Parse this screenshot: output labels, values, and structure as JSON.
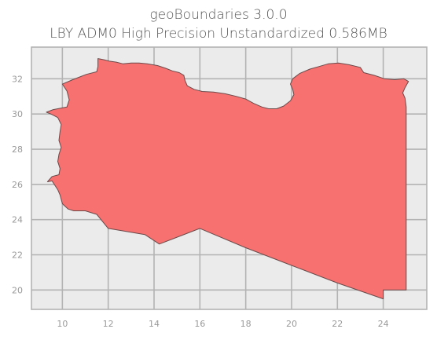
{
  "title_line1": "geoBoundaries 3.0.0",
  "title_line2": "LBY ADM0 High Precision Unstandardized 0.586MB",
  "map": {
    "country": "LBY",
    "fill_color": "#F87171",
    "edge_color": "#6b4a4a",
    "background_color": "#EBEBEB",
    "grid_color": "#B3B3B3",
    "x_ticks": [
      10,
      12,
      14,
      16,
      18,
      20,
      22,
      24
    ],
    "y_ticks": [
      20,
      22,
      24,
      26,
      28,
      30,
      32
    ],
    "xlim": [
      8.65,
      25.9
    ],
    "ylim": [
      18.9,
      33.8
    ],
    "boundary": [
      [
        11.55,
        33.15
      ],
      [
        11.82,
        33.08
      ],
      [
        12.05,
        33.0
      ],
      [
        12.35,
        32.95
      ],
      [
        12.65,
        32.85
      ],
      [
        13.0,
        32.9
      ],
      [
        13.35,
        32.9
      ],
      [
        13.7,
        32.85
      ],
      [
        14.15,
        32.75
      ],
      [
        14.5,
        32.6
      ],
      [
        14.8,
        32.45
      ],
      [
        15.1,
        32.35
      ],
      [
        15.3,
        32.2
      ],
      [
        15.35,
        31.9
      ],
      [
        15.45,
        31.6
      ],
      [
        15.75,
        31.4
      ],
      [
        16.1,
        31.28
      ],
      [
        16.6,
        31.25
      ],
      [
        17.1,
        31.15
      ],
      [
        17.6,
        31.0
      ],
      [
        18.0,
        30.85
      ],
      [
        18.35,
        30.6
      ],
      [
        18.7,
        30.4
      ],
      [
        19.0,
        30.3
      ],
      [
        19.35,
        30.3
      ],
      [
        19.65,
        30.45
      ],
      [
        19.95,
        30.75
      ],
      [
        20.1,
        31.1
      ],
      [
        20.05,
        31.4
      ],
      [
        19.95,
        31.7
      ],
      [
        20.05,
        32.0
      ],
      [
        20.35,
        32.3
      ],
      [
        20.8,
        32.55
      ],
      [
        21.2,
        32.7
      ],
      [
        21.6,
        32.85
      ],
      [
        22.05,
        32.9
      ],
      [
        22.5,
        32.8
      ],
      [
        23.0,
        32.65
      ],
      [
        23.15,
        32.35
      ],
      [
        23.6,
        32.2
      ],
      [
        24.05,
        32.0
      ],
      [
        24.5,
        31.95
      ],
      [
        24.9,
        32.0
      ],
      [
        25.1,
        31.85
      ],
      [
        24.95,
        31.5
      ],
      [
        24.85,
        31.2
      ],
      [
        24.95,
        30.9
      ],
      [
        25.0,
        30.4
      ],
      [
        25.0,
        29.5
      ],
      [
        25.0,
        25.0
      ],
      [
        25.0,
        22.0
      ],
      [
        25.0,
        20.0
      ],
      [
        24.0,
        20.0
      ],
      [
        24.0,
        19.5
      ],
      [
        22.0,
        20.4
      ],
      [
        20.0,
        21.4
      ],
      [
        18.0,
        22.4
      ],
      [
        16.0,
        23.5
      ],
      [
        15.0,
        23.0
      ],
      [
        14.23,
        22.61
      ],
      [
        13.6,
        23.15
      ],
      [
        12.0,
        23.5
      ],
      [
        11.5,
        24.3
      ],
      [
        11.0,
        24.5
      ],
      [
        10.5,
        24.5
      ],
      [
        10.25,
        24.6
      ],
      [
        10.0,
        24.9
      ],
      [
        9.9,
        25.4
      ],
      [
        9.8,
        25.7
      ],
      [
        9.55,
        26.2
      ],
      [
        9.35,
        26.15
      ],
      [
        9.55,
        26.45
      ],
      [
        9.85,
        26.55
      ],
      [
        9.9,
        26.9
      ],
      [
        9.8,
        27.3
      ],
      [
        9.85,
        27.7
      ],
      [
        9.95,
        28.1
      ],
      [
        9.85,
        28.5
      ],
      [
        9.9,
        29.0
      ],
      [
        9.95,
        29.4
      ],
      [
        9.8,
        29.8
      ],
      [
        9.5,
        30.0
      ],
      [
        9.3,
        30.1
      ],
      [
        9.6,
        30.25
      ],
      [
        10.2,
        30.4
      ],
      [
        10.3,
        30.8
      ],
      [
        10.2,
        31.3
      ],
      [
        10.0,
        31.7
      ],
      [
        10.45,
        31.95
      ],
      [
        10.75,
        32.1
      ],
      [
        11.05,
        32.25
      ],
      [
        11.5,
        32.4
      ],
      [
        11.55,
        32.7
      ],
      [
        11.55,
        33.15
      ]
    ]
  }
}
